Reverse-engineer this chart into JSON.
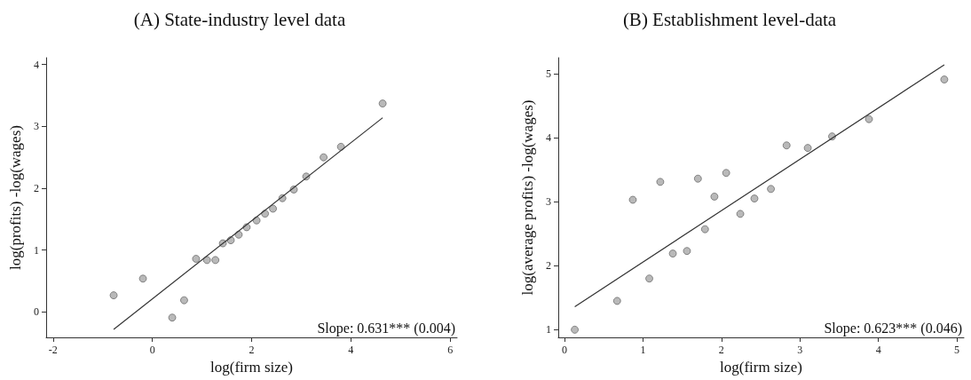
{
  "chart_data": [
    {
      "type": "scatter",
      "title": "(A) State-industry level data",
      "xlabel": "log(firm size)",
      "ylabel": "log(profits) -log(wages)",
      "xlim": [
        -2.14,
        6.14
      ],
      "ylim": [
        -0.41,
        4.11
      ],
      "xticks": [
        -2,
        0,
        2,
        4,
        6
      ],
      "yticks": [
        0,
        1,
        2,
        3,
        4
      ],
      "grid": false,
      "annotations": [
        "Slope: 0.631*** (0.004)"
      ],
      "series": [
        {
          "marker": "circle",
          "color": "#a8a8a8",
          "x": [
            -0.78,
            -0.19,
            0.4,
            0.64,
            0.88,
            1.1,
            1.27,
            1.42,
            1.58,
            1.74,
            1.9,
            2.1,
            2.27,
            2.43,
            2.62,
            2.85,
            3.1,
            3.45,
            3.8,
            4.64
          ],
          "values": [
            0.27,
            0.54,
            -0.09,
            0.19,
            0.86,
            0.84,
            0.84,
            1.11,
            1.16,
            1.25,
            1.37,
            1.48,
            1.59,
            1.67,
            1.84,
            1.98,
            2.19,
            2.5,
            2.67,
            3.37
          ]
        },
        {
          "type": "line",
          "marker": "none",
          "color": "#333333",
          "x": [
            -0.78,
            4.64
          ],
          "values": [
            -0.28,
            3.14
          ]
        }
      ]
    },
    {
      "type": "scatter",
      "title": "(B) Establishment level-data",
      "xlabel": "log(firm size)",
      "ylabel": "log(average profits) -log(wages)",
      "xlim": [
        -0.08,
        5.09
      ],
      "ylim": [
        0.88,
        5.25
      ],
      "xticks": [
        0,
        1,
        2,
        3,
        4,
        5
      ],
      "yticks": [
        1,
        2,
        3,
        4,
        5
      ],
      "grid": false,
      "annotations": [
        "Slope: 0.623*** (0.046)"
      ],
      "series": [
        {
          "marker": "circle",
          "color": "#a8a8a8",
          "x": [
            0.13,
            0.67,
            0.87,
            1.08,
            1.22,
            1.38,
            1.56,
            1.7,
            1.79,
            1.91,
            2.06,
            2.24,
            2.42,
            2.63,
            2.83,
            3.1,
            3.41,
            3.88,
            4.84
          ],
          "values": [
            1.0,
            1.45,
            3.03,
            1.8,
            3.31,
            2.19,
            2.23,
            3.36,
            2.57,
            3.08,
            3.45,
            2.81,
            3.05,
            3.2,
            3.88,
            3.84,
            4.02,
            4.29,
            4.91
          ]
        },
        {
          "type": "line",
          "marker": "none",
          "color": "#333333",
          "x": [
            0.13,
            4.84
          ],
          "values": [
            1.36,
            5.14
          ]
        }
      ]
    }
  ]
}
